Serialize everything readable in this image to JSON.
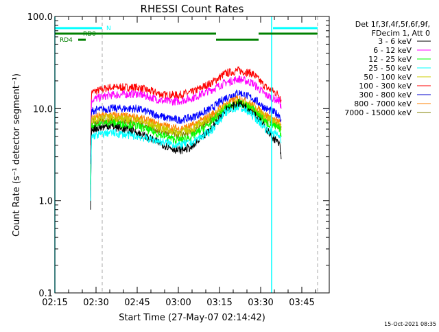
{
  "chart_data": {
    "type": "line",
    "title": "RHESSI Count Rates",
    "xlabel": "Start Time (27-May-07 02:14:42)",
    "ylabel": "Count Rate (s⁻¹ detector segment⁻¹)",
    "xlim": [
      "02:15:00",
      "03:55:00"
    ],
    "ylim": [
      0.1,
      100
    ],
    "yscale": "log",
    "x_tick_labels": [
      "02:15",
      "02:30",
      "02:45",
      "03:00",
      "03:15",
      "03:30",
      "03:45"
    ],
    "y_tick_labels": [
      "100.0",
      "10.0",
      "1.0",
      "0.1"
    ],
    "y_tick_values": [
      100,
      10,
      1,
      0.1
    ],
    "grid": false,
    "legend_placement": "right",
    "legend_header": [
      "Det 1f,3f,4f,5f,6f,9f,",
      "FDecim 1, Att 0"
    ],
    "x": [
      "02:28:00",
      "02:28:20",
      "02:35:00",
      "02:45:00",
      "02:55:00",
      "03:00:00",
      "03:05:00",
      "03:12:00",
      "03:17:00",
      "03:22:00",
      "03:27:00",
      "03:32:00",
      "03:37:00",
      "03:37:30"
    ],
    "series": [
      {
        "name": "3 - 6 keV",
        "color": "#000000",
        "legend_color": "#000000",
        "values": [
          0.8,
          6,
          6.5,
          5.5,
          4,
          3.5,
          3.8,
          6,
          9.5,
          11.5,
          9.5,
          6,
          4,
          2.7
        ]
      },
      {
        "name": "6 - 12 keV",
        "color": "#ff00ff",
        "legend_color": "#ff00ff",
        "values": [
          3,
          12.5,
          14,
          14.5,
          12,
          12,
          13,
          16,
          19,
          21,
          19,
          14,
          12,
          10
        ]
      },
      {
        "name": "12 - 25 keV",
        "color": "#00ff00",
        "legend_color": "#00ff00",
        "values": [
          1.5,
          6.5,
          7,
          6.5,
          5,
          4.5,
          5,
          7,
          10,
          11.5,
          10,
          7,
          6,
          5
        ]
      },
      {
        "name": "25 - 50 keV",
        "color": "#00ffff",
        "legend_color": "#00ffff",
        "values": [
          1,
          5,
          5.5,
          5,
          4.3,
          4,
          4.3,
          5.8,
          9,
          10.5,
          8.5,
          6,
          5,
          4.5
        ]
      },
      {
        "name": "50 - 100 keV",
        "color": "#cccc00",
        "legend_color": "#cccc00",
        "values": [
          1.3,
          7.5,
          8,
          7.5,
          6,
          5.5,
          6,
          8,
          10.5,
          12,
          10.5,
          8,
          6.5,
          6
        ]
      },
      {
        "name": "100 - 300 keV",
        "color": "#ff0000",
        "legend_color": "#ff0000",
        "values": [
          4,
          15,
          17,
          17,
          14,
          14,
          15,
          19,
          24,
          26,
          24,
          17,
          14,
          12
        ]
      },
      {
        "name": "300 - 800 keV",
        "color": "#0000ff",
        "legend_color": "#0000cc",
        "values": [
          2.5,
          9.5,
          10,
          10,
          8,
          7.5,
          8,
          10,
          13,
          15,
          13,
          10,
          8.5,
          7
        ]
      },
      {
        "name": "800 - 7000 keV",
        "color": "#ff8000",
        "legend_color": "#ff8000",
        "values": [
          1.7,
          8,
          8.5,
          8,
          6.5,
          6,
          6.5,
          8.5,
          11,
          13,
          11,
          8.5,
          7,
          6
        ]
      },
      {
        "name": "7000 - 15000 keV",
        "color": "#808000",
        "legend_color": "#808000",
        "values": [
          1.6,
          7,
          7.5,
          7,
          5.5,
          5.2,
          5.5,
          7.5,
          10,
          11.5,
          10,
          7.5,
          6.5,
          5.8
        ]
      }
    ],
    "annotations": {
      "flag_labels": [
        "N",
        "RD0",
        "RD4"
      ],
      "night_color": "#00ffff",
      "rd_color": "#008000",
      "night_bars": [
        [
          "02:15:00",
          "02:32:15"
        ],
        [
          "03:34:30",
          "03:50:45"
        ]
      ],
      "rd0_bars": [
        [
          "02:15:00",
          "03:13:45"
        ],
        [
          "03:29:15",
          "03:50:45"
        ]
      ],
      "rd4_bars": [
        [
          "02:23:30",
          "02:26:15"
        ],
        [
          "03:13:45",
          "03:29:15"
        ]
      ],
      "solid_vlines": [
        "02:15:00",
        "03:34:00"
      ],
      "dashed_vlines": [
        "02:32:15",
        "03:50:45"
      ]
    }
  },
  "footer": {
    "timestamp": "15-Oct-2021 08:35"
  }
}
